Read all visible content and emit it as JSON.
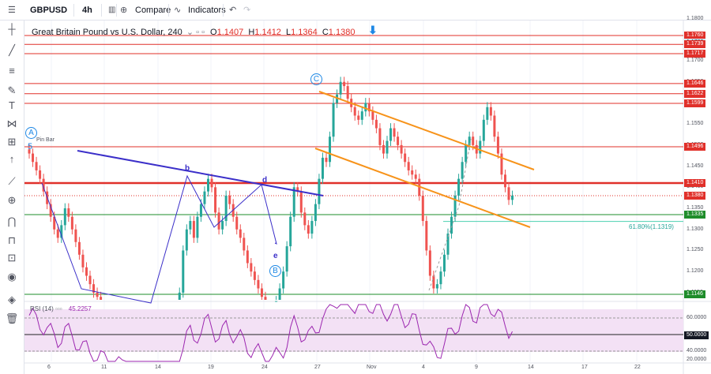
{
  "toolbar": {
    "symbol": "GBPUSD",
    "interval": "4h",
    "compare_label": "Compare",
    "indicators_label": "Indicators"
  },
  "legend": {
    "title": "Great Britain Pound vs U.S. Dollar, 240",
    "o_label": "O",
    "o_value": "1.1407",
    "h_label": "H",
    "h_value": "1.1412",
    "l_label": "L",
    "l_value": "1.1364",
    "c_label": "C",
    "c_value": "1.1380"
  },
  "rsi": {
    "label": "RSI (14)",
    "value": "45.2257",
    "levels": [
      "60.0000",
      "50.0000",
      "40.0000",
      "20.0000"
    ]
  },
  "price_axis": {
    "ticks": [
      "1.1800",
      "1.1700",
      "1.1650",
      "1.1600",
      "1.1550",
      "1.1500",
      "1.1450",
      "1.1400",
      "1.1350",
      "1.1300",
      "1.1250",
      "1.1200",
      "1.1150"
    ],
    "levels": [
      {
        "label": "1.1760",
        "color": "#e0302a"
      },
      {
        "label": "1.1760",
        "color": "#d6e7f5"
      },
      {
        "label": "1.1739",
        "color": "#e0302a"
      },
      {
        "label": "1.1717",
        "color": "#e0302a"
      },
      {
        "label": "1.1646",
        "color": "#e0302a"
      },
      {
        "label": "1.1622",
        "color": "#e0302a"
      },
      {
        "label": "1.1599",
        "color": "#e0302a"
      },
      {
        "label": "1.1496",
        "color": "#e0302a"
      },
      {
        "label": "1.1410",
        "color": "#e0302a"
      },
      {
        "label": "1.1380",
        "color": "#e0302a"
      },
      {
        "label": "1.1335",
        "color": "#1e8c2a"
      },
      {
        "label": "1.1146",
        "color": "#1e8c2a"
      }
    ]
  },
  "time_axis": [
    "6",
    "11",
    "14",
    "19",
    "24",
    "27",
    "Nov",
    "4",
    "9",
    "14",
    "17",
    "22"
  ],
  "annotations": {
    "wave_a": "A",
    "wave_a_sub": "5",
    "pin_bar": "Pin Bar",
    "wave_b_lower": "b",
    "wave_d": "d",
    "wave_e": "e",
    "wave_B": "B",
    "wave_C": "C",
    "fib": "61.80%(1.1319)"
  },
  "colors": {
    "up": "#26a69a",
    "down": "#ef5350",
    "resistance": "#e0302a",
    "support": "#1e8c2a",
    "channel": "#f7931a",
    "trend": "#3b2fc9",
    "rsi": "#9c27b0"
  }
}
